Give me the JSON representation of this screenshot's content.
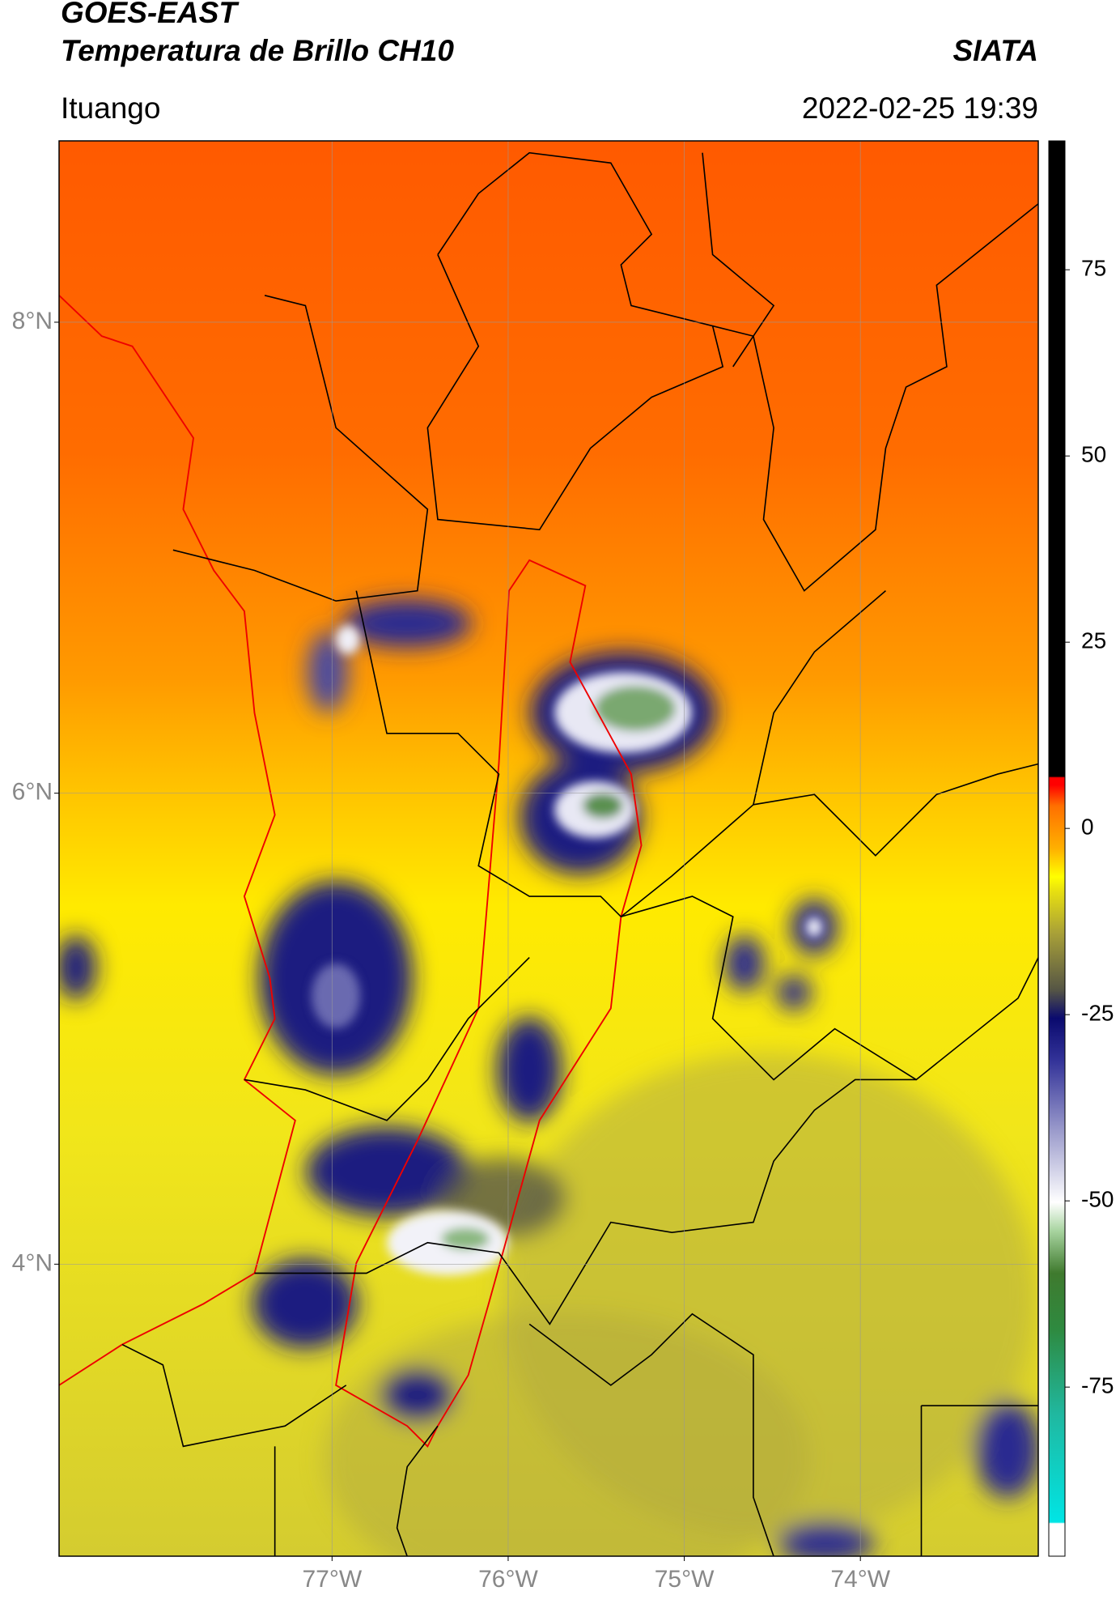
{
  "header": {
    "satellite": "GOES-EAST",
    "product": "Temperatura de Brillo CH10",
    "agency": "SIATA",
    "region": "Ituango",
    "datetime": "2022-02-25 19:39"
  },
  "map": {
    "latlim": [
      2.76,
      8.77
    ],
    "lonlim": [
      -78.55,
      -72.99
    ],
    "latticks": [
      {
        "value": 8,
        "label": "8°N"
      },
      {
        "value": 6,
        "label": "6°N"
      },
      {
        "value": 4,
        "label": "4°N"
      }
    ],
    "lonticks": [
      {
        "value": -77,
        "label": "77°W"
      },
      {
        "value": -76,
        "label": "76°W"
      },
      {
        "value": -75,
        "label": "75°W"
      },
      {
        "value": -74,
        "label": "74°W"
      }
    ],
    "grid": true
  },
  "colorbar": {
    "lim": [
      -97.7,
      92.3
    ],
    "ticks": [
      75,
      50,
      25,
      0,
      -25,
      -50,
      -75
    ]
  }
}
